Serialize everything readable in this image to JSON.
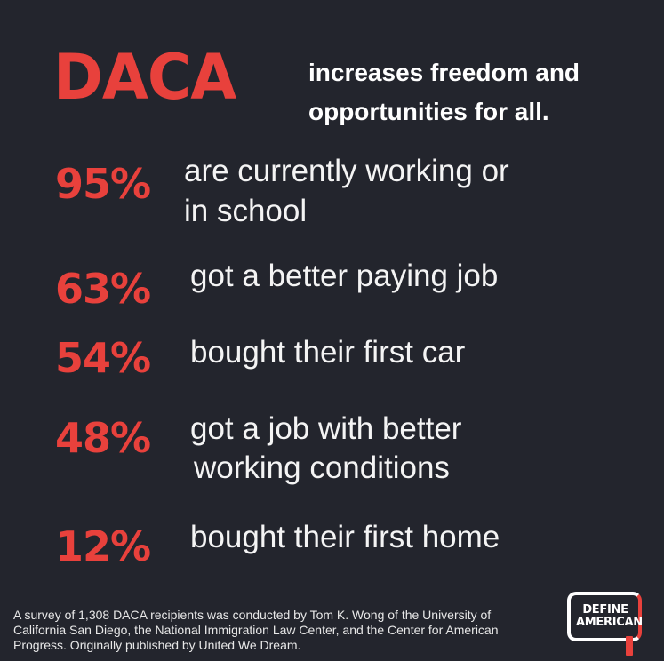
{
  "headline": {
    "word": "DACA",
    "subtitle": "increases freedom and opportunities for all."
  },
  "stats": [
    {
      "percent": "95%",
      "lines": [
        "are currently working or",
        "in school"
      ]
    },
    {
      "percent": "63%",
      "lines": [
        "got a better paying job"
      ]
    },
    {
      "percent": "54%",
      "lines": [
        "bought their first car"
      ]
    },
    {
      "percent": "48%",
      "lines": [
        "got a job with better",
        "working conditions"
      ]
    },
    {
      "percent": "12%",
      "lines": [
        "bought their first home"
      ]
    }
  ],
  "footnote": "A survey of 1,308 DACA recipients was conducted by Tom K. Wong of the University of California San Diego, the National Immigration Law Center, and the Center for American Progress. Originally published by United We Dream.",
  "logo": {
    "line1": "DEFINE",
    "line2": "AMERICAN"
  },
  "colors": {
    "background": "#23252d",
    "accent": "#e8413c",
    "text": "#ffffff"
  }
}
